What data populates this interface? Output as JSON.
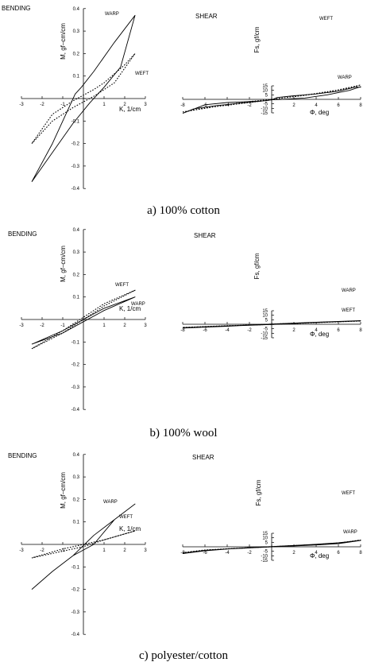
{
  "figure": {
    "panels": [
      {
        "caption": "a) 100% cotton",
        "bending": {
          "corner_label": "BENDING",
          "y_axis_label": "M, gf–cm/cm",
          "x_axis_label": "K, 1/cm",
          "x_ticks": [
            "-3",
            "-2",
            "-1",
            "0",
            "1",
            "2",
            "3"
          ],
          "y_ticks": [
            "0.4",
            "0.3",
            "0.2",
            "0.1",
            "0",
            "-0.1",
            "-0.2",
            "-0.3",
            "-0.4"
          ],
          "labels": [
            "WARP",
            "WEFT"
          ]
        },
        "shear": {
          "corner_label": "SHEAR",
          "y_axis_label": "Fs, gf/cm",
          "x_axis_label": "Φ, deg",
          "x_ticks": [
            "-8",
            "-6",
            "-4",
            "-2",
            "0",
            "2",
            "4",
            "6",
            "8"
          ],
          "y_ticks": [
            "15",
            "10",
            "5",
            "0",
            "-5",
            "-10",
            "-15"
          ],
          "labels": [
            "WEFT",
            "WARP"
          ]
        }
      },
      {
        "caption": "b) 100% wool",
        "bending": {
          "corner_label": "BENDING",
          "y_axis_label": "M, gf–cm/cm",
          "x_axis_label": "K, 1/cm",
          "x_ticks": [
            "-3",
            "-2",
            "-1",
            "0",
            "1",
            "2",
            "3"
          ],
          "y_ticks": [
            "0.4",
            "0.3",
            "0.2",
            "0.1",
            "0",
            "-0.1",
            "-0.2",
            "-0.3",
            "-0.4"
          ],
          "labels": [
            "WEFT",
            "WARP"
          ]
        },
        "shear": {
          "corner_label": "SHEAR",
          "y_axis_label": "Fs, gf/cm",
          "x_axis_label": "Φ, deg",
          "x_ticks": [
            "-8",
            "-6",
            "-4",
            "-2",
            "0",
            "2",
            "4",
            "6",
            "8"
          ],
          "y_ticks": [
            "15",
            "10",
            "5",
            "0",
            "-5",
            "-10",
            "-15"
          ],
          "labels": [
            "WARP",
            "WEFT"
          ]
        }
      },
      {
        "caption": "c) polyester/cotton",
        "bending": {
          "corner_label": "BENDING",
          "y_axis_label": "M, gf–cm/cm",
          "x_axis_label": "K, 1/cm",
          "x_ticks": [
            "-3",
            "-2",
            "-1",
            "0",
            "1",
            "2",
            "3"
          ],
          "y_ticks": [
            "0.4",
            "0.3",
            "0.2",
            "0.1",
            "0",
            "-0.1",
            "-0.2",
            "-0.3",
            "-0.4"
          ],
          "labels": [
            "WARP",
            "WEFT"
          ]
        },
        "shear": {
          "corner_label": "SHEAR",
          "y_axis_label": "Fs, gf/cm",
          "x_axis_label": "Φ, deg",
          "x_ticks": [
            "-8",
            "-6",
            "-4",
            "-2",
            "0",
            "2",
            "4",
            "6",
            "8"
          ],
          "y_ticks": [
            "15",
            "10",
            "5",
            "0",
            "-5",
            "-10",
            "-15"
          ],
          "labels": [
            "WEFT",
            "WARP"
          ]
        }
      }
    ]
  },
  "chart_data": [
    {
      "type": "line",
      "title": "BENDING",
      "xlabel": "K, 1/cm",
      "ylabel": "M, gf–cm/cm",
      "xlim": [
        -3,
        3
      ],
      "ylim": [
        -0.4,
        0.4
      ],
      "grid": false,
      "series": [
        {
          "name": "WARP",
          "style": "solid",
          "x": [
            -2.5,
            -1.5,
            -0.5,
            0.3,
            1.0,
            1.8,
            2.5,
            1.5,
            0.5,
            -0.1,
            -0.4,
            -0.6,
            -0.6,
            -1.5,
            -2.5
          ],
          "y": [
            -0.37,
            -0.24,
            -0.11,
            -0.02,
            0.05,
            0.14,
            0.37,
            0.25,
            0.12,
            0.05,
            0.02,
            -0.02,
            -0.02,
            -0.2,
            -0.37
          ]
        },
        {
          "name": "WEFT",
          "style": "dotted",
          "x": [
            -2.5,
            -1.5,
            -0.5,
            0.5,
            1.5,
            2.5,
            2.0,
            1.0,
            0.5,
            -0.5,
            -1.5,
            -2.5
          ],
          "y": [
            -0.2,
            -0.1,
            -0.04,
            0.01,
            0.07,
            0.2,
            0.15,
            0.07,
            0.04,
            -0.01,
            -0.07,
            -0.2
          ]
        }
      ]
    },
    {
      "type": "line",
      "title": "SHEAR",
      "xlabel": "Φ, deg",
      "ylabel": "Fs, gf/cm",
      "xlim": [
        -8,
        8
      ],
      "ylim": [
        -15,
        15
      ],
      "grid": false,
      "series": [
        {
          "name": "WARP",
          "style": "solid",
          "x": [
            -8,
            -7,
            -5,
            -3,
            -1,
            0,
            0.5,
            2,
            4,
            6,
            7.5,
            8,
            8,
            7,
            5,
            3,
            1,
            0,
            -0.5,
            -2,
            -4,
            -6,
            -8
          ],
          "y": [
            -15.5,
            -10.5,
            -7,
            -4.5,
            -2,
            -0.5,
            2,
            4,
            6,
            9,
            13.5,
            13.5,
            14,
            10,
            5,
            1.5,
            0,
            -0.5,
            -1.5,
            -2.5,
            -3.5,
            -6,
            -15.5
          ]
        },
        {
          "name": "WEFT",
          "style": "dotted",
          "x": [
            -8,
            -6,
            -4,
            -2,
            0,
            2,
            4,
            6,
            8,
            7,
            5,
            3,
            1,
            0,
            -2,
            -4,
            -6,
            -8
          ],
          "y": [
            -14,
            -10,
            -6,
            -2.5,
            0,
            3,
            6.5,
            10.5,
            16,
            12.5,
            8,
            4.5,
            1.5,
            -0.5,
            -3.5,
            -6.5,
            -9.5,
            -14
          ]
        }
      ]
    },
    {
      "type": "line",
      "title": "BENDING",
      "xlabel": "K, 1/cm",
      "ylabel": "M, gf–cm/cm",
      "xlim": [
        -3,
        3
      ],
      "ylim": [
        -0.4,
        0.4
      ],
      "grid": false,
      "series": [
        {
          "name": "WARP",
          "style": "solid",
          "x": [
            -2.5,
            -1.0,
            0.0,
            1.0,
            2.5,
            1.0,
            0.0,
            -1.0,
            -2.5
          ],
          "y": [
            -0.11,
            -0.05,
            0.0,
            0.05,
            0.1,
            0.04,
            -0.01,
            -0.06,
            -0.11
          ]
        },
        {
          "name": "WEFT",
          "style": "dotted",
          "x": [
            -2.5,
            -1.0,
            0.0,
            1.0,
            2.5,
            1.0,
            0.0,
            -1.0,
            -2.5
          ],
          "y": [
            -0.13,
            -0.06,
            0.0,
            0.06,
            0.13,
            0.07,
            0.01,
            -0.05,
            -0.13
          ]
        }
      ]
    },
    {
      "type": "line",
      "title": "SHEAR",
      "xlabel": "Φ, deg",
      "ylabel": "Fs, gf/cm",
      "xlim": [
        -8,
        8
      ],
      "ylim": [
        -15,
        15
      ],
      "grid": false,
      "series": [
        {
          "name": "WARP",
          "style": "solid",
          "x": [
            -8,
            -4,
            0,
            4,
            8,
            4,
            0,
            -4,
            -8
          ],
          "y": [
            -4.2,
            -2.2,
            0.3,
            2.3,
            4.1,
            2.0,
            -0.3,
            -2.0,
            -4.2
          ]
        },
        {
          "name": "WEFT",
          "style": "dotted",
          "x": [
            -8,
            -4,
            0,
            4,
            8,
            4,
            0,
            -4,
            -8
          ],
          "y": [
            -3.5,
            -1.8,
            0.2,
            2.0,
            3.6,
            1.8,
            -0.2,
            -1.6,
            -3.5
          ]
        }
      ]
    },
    {
      "type": "line",
      "title": "BENDING",
      "xlabel": "K, 1/cm",
      "ylabel": "M, gf–cm/cm",
      "xlim": [
        -3,
        3
      ],
      "ylim": [
        -0.4,
        0.4
      ],
      "grid": false,
      "series": [
        {
          "name": "WARP",
          "style": "solid",
          "x": [
            -2.5,
            -1.5,
            -0.5,
            0.5,
            1.5,
            2.5,
            1.5,
            0.5,
            -0.5,
            -1.5,
            -2.5
          ],
          "y": [
            -0.2,
            -0.12,
            -0.05,
            0.04,
            0.11,
            0.18,
            0.11,
            0.0,
            -0.05,
            -0.12,
            -0.2
          ]
        },
        {
          "name": "WEFT",
          "style": "dotted",
          "x": [
            -2.5,
            -1.0,
            0.0,
            1.0,
            2.5,
            1.0,
            0.0,
            -1.0,
            -2.5
          ],
          "y": [
            -0.06,
            -0.03,
            -0.01,
            0.02,
            0.06,
            0.02,
            0.0,
            -0.02,
            -0.06
          ]
        }
      ]
    },
    {
      "type": "line",
      "title": "SHEAR",
      "xlabel": "Φ, deg",
      "ylabel": "Fs, gf/cm",
      "xlim": [
        -8,
        8
      ],
      "ylim": [
        -15,
        15
      ],
      "grid": false,
      "series": [
        {
          "name": "WARP",
          "style": "solid",
          "x": [
            -8,
            -6,
            -4,
            -2,
            0,
            2,
            4,
            6,
            8,
            6,
            4,
            2,
            0,
            -2,
            -4,
            -6,
            -8
          ],
          "y": [
            -7.5,
            -4,
            -2.5,
            -1,
            0.3,
            1.5,
            2.8,
            4.5,
            7,
            3.5,
            2.0,
            1.0,
            0,
            -1.2,
            -2.5,
            -4.5,
            -7.5
          ]
        },
        {
          "name": "WEFT",
          "style": "dotted",
          "x": [
            -8,
            -6,
            -4,
            -2,
            0,
            2,
            4,
            6,
            8,
            6,
            4,
            2,
            0,
            -2,
            -4,
            -6,
            -8
          ],
          "y": [
            -6.5,
            -3.5,
            -2.2,
            -1,
            0.2,
            1.3,
            2.5,
            4.2,
            7.5,
            4.0,
            2.3,
            1.2,
            0,
            -1.1,
            -2.3,
            -4,
            -6.5
          ]
        }
      ]
    }
  ]
}
